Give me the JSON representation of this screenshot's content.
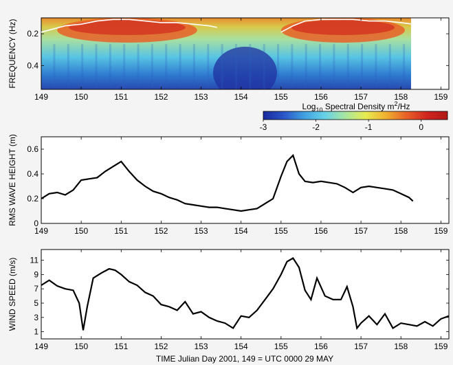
{
  "colors": {
    "trace": "#000000",
    "frame": "#000000",
    "contour": "#ffffff",
    "background": "#f4f4f4"
  },
  "colormap": [
    "#1a2a9c",
    "#2a55c8",
    "#3fa0e0",
    "#68d2e8",
    "#a8e6a0",
    "#e8ec50",
    "#f0b030",
    "#e86028",
    "#d02420",
    "#b01818"
  ],
  "chart_data": [
    {
      "type": "heatmap",
      "ylabel": "FREQUENCY (Hz)",
      "x_ticks": [
        "149",
        "150",
        "151",
        "152",
        "153",
        "154",
        "155",
        "156",
        "157",
        "158",
        "159"
      ],
      "y_ticks": [
        "0.2",
        "0.4"
      ],
      "xlim": [
        149,
        159.2
      ],
      "ylim": [
        0.1,
        0.55
      ],
      "data_extent_x": [
        149,
        158.3
      ],
      "y_reversed": true,
      "colorbar": {
        "label_prefix": "Log",
        "label_sub": "10",
        "label_mid": " Spectral Density m",
        "label_sup": "2",
        "label_suffix": "/Hz",
        "ticks": [
          "-3",
          "-2",
          "-1",
          "0"
        ],
        "range": [
          -3,
          0.5
        ]
      },
      "peak_frequency_contour": {
        "x": [
          149.0,
          149.3,
          149.6,
          150.0,
          150.4,
          150.8,
          151.2,
          151.6,
          152.0,
          152.4,
          152.8,
          153.2,
          153.4,
          155.0,
          155.3,
          155.6,
          156.0,
          156.4,
          156.8,
          157.2,
          157.6,
          158.0,
          158.3
        ],
        "y": [
          0.19,
          0.17,
          0.15,
          0.14,
          0.12,
          0.11,
          0.11,
          0.12,
          0.13,
          0.13,
          0.14,
          0.15,
          0.16,
          0.19,
          0.15,
          0.12,
          0.11,
          0.11,
          0.11,
          0.12,
          0.12,
          0.13,
          0.14
        ]
      }
    },
    {
      "type": "line",
      "ylabel": "RMS WAVE HEIGHT (m)",
      "x_ticks": [
        "149",
        "150",
        "151",
        "152",
        "153",
        "154",
        "155",
        "156",
        "157",
        "158",
        "159"
      ],
      "y_ticks": [
        "0",
        "0.2",
        "0.4",
        "0.6"
      ],
      "xlim": [
        149,
        159.2
      ],
      "ylim": [
        0,
        0.7
      ],
      "x": [
        149.0,
        149.2,
        149.4,
        149.6,
        149.8,
        150.0,
        150.2,
        150.4,
        150.6,
        150.8,
        151.0,
        151.2,
        151.4,
        151.6,
        151.8,
        152.0,
        152.2,
        152.4,
        152.6,
        152.8,
        153.0,
        153.2,
        153.4,
        153.6,
        153.8,
        154.0,
        154.2,
        154.4,
        154.6,
        154.8,
        155.0,
        155.15,
        155.3,
        155.45,
        155.6,
        155.8,
        156.0,
        156.2,
        156.4,
        156.6,
        156.8,
        157.0,
        157.2,
        157.4,
        157.6,
        157.8,
        158.0,
        158.2,
        158.3
      ],
      "y": [
        0.2,
        0.24,
        0.25,
        0.23,
        0.27,
        0.35,
        0.36,
        0.37,
        0.42,
        0.46,
        0.5,
        0.42,
        0.35,
        0.3,
        0.26,
        0.24,
        0.21,
        0.19,
        0.16,
        0.15,
        0.14,
        0.13,
        0.13,
        0.12,
        0.11,
        0.1,
        0.11,
        0.12,
        0.16,
        0.2,
        0.38,
        0.5,
        0.55,
        0.4,
        0.34,
        0.33,
        0.34,
        0.33,
        0.32,
        0.29,
        0.25,
        0.29,
        0.3,
        0.29,
        0.28,
        0.27,
        0.24,
        0.21,
        0.18
      ]
    },
    {
      "type": "line",
      "ylabel": "WIND SPEED (m/s)",
      "xlabel": "TIME Julian Day 2001, 149 = UTC 0000 29 MAY",
      "x_ticks": [
        "149",
        "150",
        "151",
        "152",
        "153",
        "154",
        "155",
        "156",
        "157",
        "158",
        "159"
      ],
      "y_ticks": [
        "1",
        "3",
        "5",
        "7",
        "9",
        "11"
      ],
      "xlim": [
        149,
        159.2
      ],
      "ylim": [
        0,
        12.5
      ],
      "x": [
        149.0,
        149.2,
        149.4,
        149.6,
        149.8,
        149.95,
        150.05,
        150.15,
        150.3,
        150.5,
        150.7,
        150.85,
        151.0,
        151.2,
        151.4,
        151.6,
        151.8,
        152.0,
        152.2,
        152.4,
        152.6,
        152.8,
        153.0,
        153.2,
        153.4,
        153.6,
        153.8,
        154.0,
        154.2,
        154.4,
        154.6,
        154.8,
        155.0,
        155.15,
        155.3,
        155.45,
        155.6,
        155.75,
        155.9,
        156.1,
        156.3,
        156.5,
        156.65,
        156.8,
        156.9,
        157.0,
        157.2,
        157.4,
        157.6,
        157.8,
        158.0,
        158.2,
        158.4,
        158.6,
        158.8,
        159.0,
        159.2
      ],
      "y": [
        7.5,
        8.2,
        7.4,
        7.0,
        6.8,
        5.0,
        1.2,
        4.5,
        8.5,
        9.2,
        9.8,
        9.6,
        9.0,
        8.0,
        7.5,
        6.5,
        6.0,
        4.8,
        4.5,
        4.0,
        5.2,
        3.5,
        3.8,
        3.0,
        2.5,
        2.2,
        1.5,
        3.2,
        3.0,
        4.0,
        5.5,
        7.0,
        9.0,
        10.8,
        11.3,
        10.0,
        6.8,
        5.5,
        8.5,
        6.0,
        5.5,
        5.5,
        7.3,
        4.5,
        1.5,
        2.2,
        3.2,
        2.0,
        3.5,
        1.5,
        2.2,
        2.0,
        1.8,
        2.4,
        1.8,
        2.8,
        3.2
      ]
    }
  ]
}
